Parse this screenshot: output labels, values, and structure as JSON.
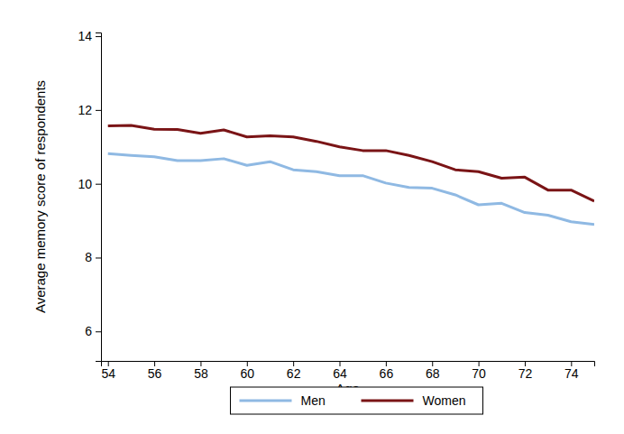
{
  "chart_data": {
    "type": "line",
    "x_label": "Age",
    "y_label": "Average memory score of respondents",
    "x": [
      54,
      55,
      56,
      57,
      58,
      59,
      60,
      61,
      62,
      63,
      64,
      65,
      66,
      67,
      68,
      69,
      70,
      71,
      72,
      73,
      74,
      75
    ],
    "series": [
      {
        "name": "Men",
        "color": "#8fb9e3",
        "values": [
          10.82,
          10.77,
          10.73,
          10.63,
          10.63,
          10.68,
          10.5,
          10.6,
          10.38,
          10.33,
          10.22,
          10.22,
          10.02,
          9.9,
          9.88,
          9.7,
          9.43,
          9.47,
          9.22,
          9.15,
          8.97,
          8.9
        ]
      },
      {
        "name": "Women",
        "color": "#7a1416",
        "values": [
          11.57,
          11.58,
          11.48,
          11.47,
          11.37,
          11.46,
          11.27,
          11.3,
          11.27,
          11.15,
          11.0,
          10.9,
          10.9,
          10.77,
          10.6,
          10.38,
          10.33,
          10.15,
          10.18,
          9.83,
          9.83,
          9.53
        ]
      }
    ],
    "xlim": [
      53.7,
      75
    ],
    "xticks": [
      54,
      56,
      58,
      60,
      62,
      64,
      66,
      68,
      70,
      72,
      74
    ],
    "ylim": [
      5.2,
      14.1
    ],
    "yticks": [
      6,
      8,
      10,
      12,
      14
    ],
    "grid": false,
    "legend": "bottom"
  }
}
